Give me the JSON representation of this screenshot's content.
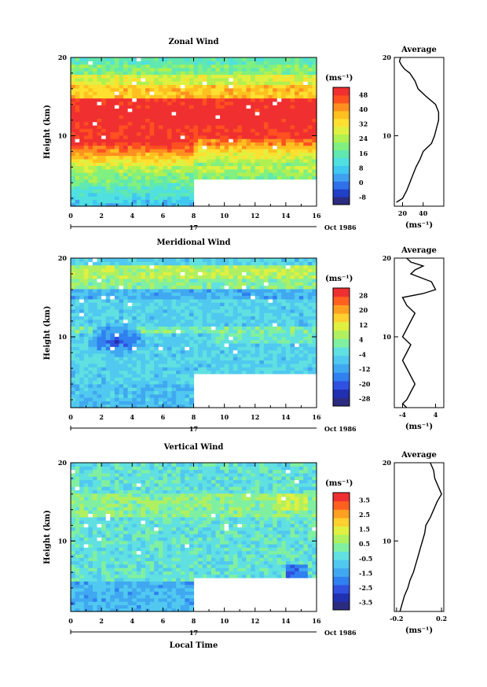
{
  "chart_data": [
    {
      "type": "heatmap",
      "title": "Zonal Wind",
      "ylabel": "Height (km)",
      "x_ticks": [
        "0",
        "2",
        "4",
        "6",
        "8",
        "10",
        "12",
        "14",
        "16"
      ],
      "y_ticks": [
        "10",
        "20"
      ],
      "xlim": [
        0,
        16
      ],
      "ylim": [
        1,
        20
      ],
      "date_day": "17",
      "date_label": "Oct 1986",
      "colorbar": {
        "unit": "(ms⁻¹)",
        "ticks": [
          "48",
          "40",
          "32",
          "24",
          "16",
          "8",
          "0",
          "-8"
        ],
        "colors": [
          "#2b2b80",
          "#2040c8",
          "#3070e8",
          "#40a0f0",
          "#40c8f0",
          "#50e0e0",
          "#60e8b0",
          "#80f080",
          "#b0f050",
          "#e0f040",
          "#ffe030",
          "#ffc020",
          "#ff9020",
          "#ff5020",
          "#f03030"
        ]
      },
      "average": {
        "title": "Average",
        "x_ticks": [
          "20",
          "40"
        ],
        "y_ticks": [
          "10",
          "20"
        ],
        "unit": "(ms⁻¹)",
        "xlim": [
          12,
          60
        ],
        "heights": [
          1.5,
          2,
          3,
          4,
          5,
          6,
          7,
          8,
          8.5,
          9,
          10,
          11,
          12,
          13,
          14,
          15,
          16,
          17,
          18,
          18.5,
          19,
          19.5,
          20
        ],
        "values": [
          14,
          20,
          24,
          27,
          30,
          33,
          37,
          40,
          44,
          48,
          51,
          53,
          55,
          55,
          52,
          43,
          35,
          32,
          27,
          22,
          19,
          17,
          18
        ]
      }
    },
    {
      "type": "heatmap",
      "title": "Meridional Wind",
      "ylabel": "Height (km)",
      "x_ticks": [
        "0",
        "2",
        "4",
        "6",
        "8",
        "10",
        "12",
        "14",
        "16"
      ],
      "y_ticks": [
        "10",
        "20"
      ],
      "xlim": [
        0,
        16
      ],
      "ylim": [
        1,
        20
      ],
      "date_day": "17",
      "date_label": "Oct 1986",
      "colorbar": {
        "unit": "(ms⁻¹)",
        "ticks": [
          "28",
          "20",
          "12",
          "4",
          "-4",
          "-12",
          "-20",
          "-28"
        ],
        "colors": [
          "#2b2b80",
          "#2030b0",
          "#3050e0",
          "#3080f0",
          "#40a8f0",
          "#50c8f0",
          "#60e0e0",
          "#80f0a0",
          "#b0f060",
          "#e0f040",
          "#ffd030",
          "#ffa020",
          "#ff6020",
          "#f03030"
        ]
      },
      "average": {
        "title": "Average",
        "x_ticks": [
          "-4",
          "4"
        ],
        "y_ticks": [
          "10",
          "20"
        ],
        "unit": "(ms⁻¹)",
        "xlim": [
          -6,
          6
        ],
        "heights": [
          1,
          1.5,
          2,
          3,
          4,
          5,
          6,
          7,
          8,
          9,
          10,
          11,
          12,
          13,
          14,
          15,
          15.5,
          16,
          17,
          18,
          18.5,
          19,
          19.5,
          20
        ],
        "values": [
          -3,
          -4,
          -3,
          -2,
          -1,
          -2,
          -3,
          -4,
          -3,
          -2,
          -4,
          -3,
          -2,
          -1,
          -3,
          -4,
          1,
          4,
          3,
          -2,
          -1,
          1,
          -2,
          -3
        ]
      }
    },
    {
      "type": "heatmap",
      "title": "Vertical Wind",
      "ylabel": "Height (km)",
      "xlabel": "Local Time",
      "x_ticks": [
        "0",
        "2",
        "4",
        "6",
        "8",
        "10",
        "12",
        "14",
        "16"
      ],
      "y_ticks": [
        "10",
        "20"
      ],
      "xlim": [
        0,
        16
      ],
      "ylim": [
        1,
        20
      ],
      "date_day": "17",
      "date_label": "Oct 1986",
      "colorbar": {
        "unit": "(ms⁻¹)",
        "ticks": [
          "3.5",
          "2.5",
          "1.5",
          "0.5",
          "-0.5",
          "-1.5",
          "-2.5",
          "-3.5"
        ],
        "colors": [
          "#2b2b80",
          "#2030b0",
          "#3050e0",
          "#3080f0",
          "#40a8f0",
          "#50c8f0",
          "#60e0e0",
          "#80f0a0",
          "#b0f060",
          "#e0f040",
          "#ffd030",
          "#ffa020",
          "#ff6020",
          "#f03030"
        ]
      },
      "average": {
        "title": "Average",
        "x_ticks": [
          "-0.2",
          "0.2"
        ],
        "y_ticks": [
          "10",
          "20"
        ],
        "unit": "(ms⁻¹)",
        "xlim": [
          -0.22,
          0.22
        ],
        "heights": [
          1,
          2,
          3,
          4,
          5,
          6,
          7,
          8,
          9,
          10,
          11,
          12,
          13,
          14,
          15,
          16,
          17,
          18,
          19,
          20
        ],
        "values": [
          -0.17,
          -0.15,
          -0.13,
          -0.1,
          -0.08,
          -0.05,
          -0.03,
          -0.01,
          0.01,
          0.03,
          0.05,
          0.06,
          0.1,
          0.13,
          0.16,
          0.2,
          0.17,
          0.14,
          0.13,
          0.1
        ]
      }
    }
  ]
}
